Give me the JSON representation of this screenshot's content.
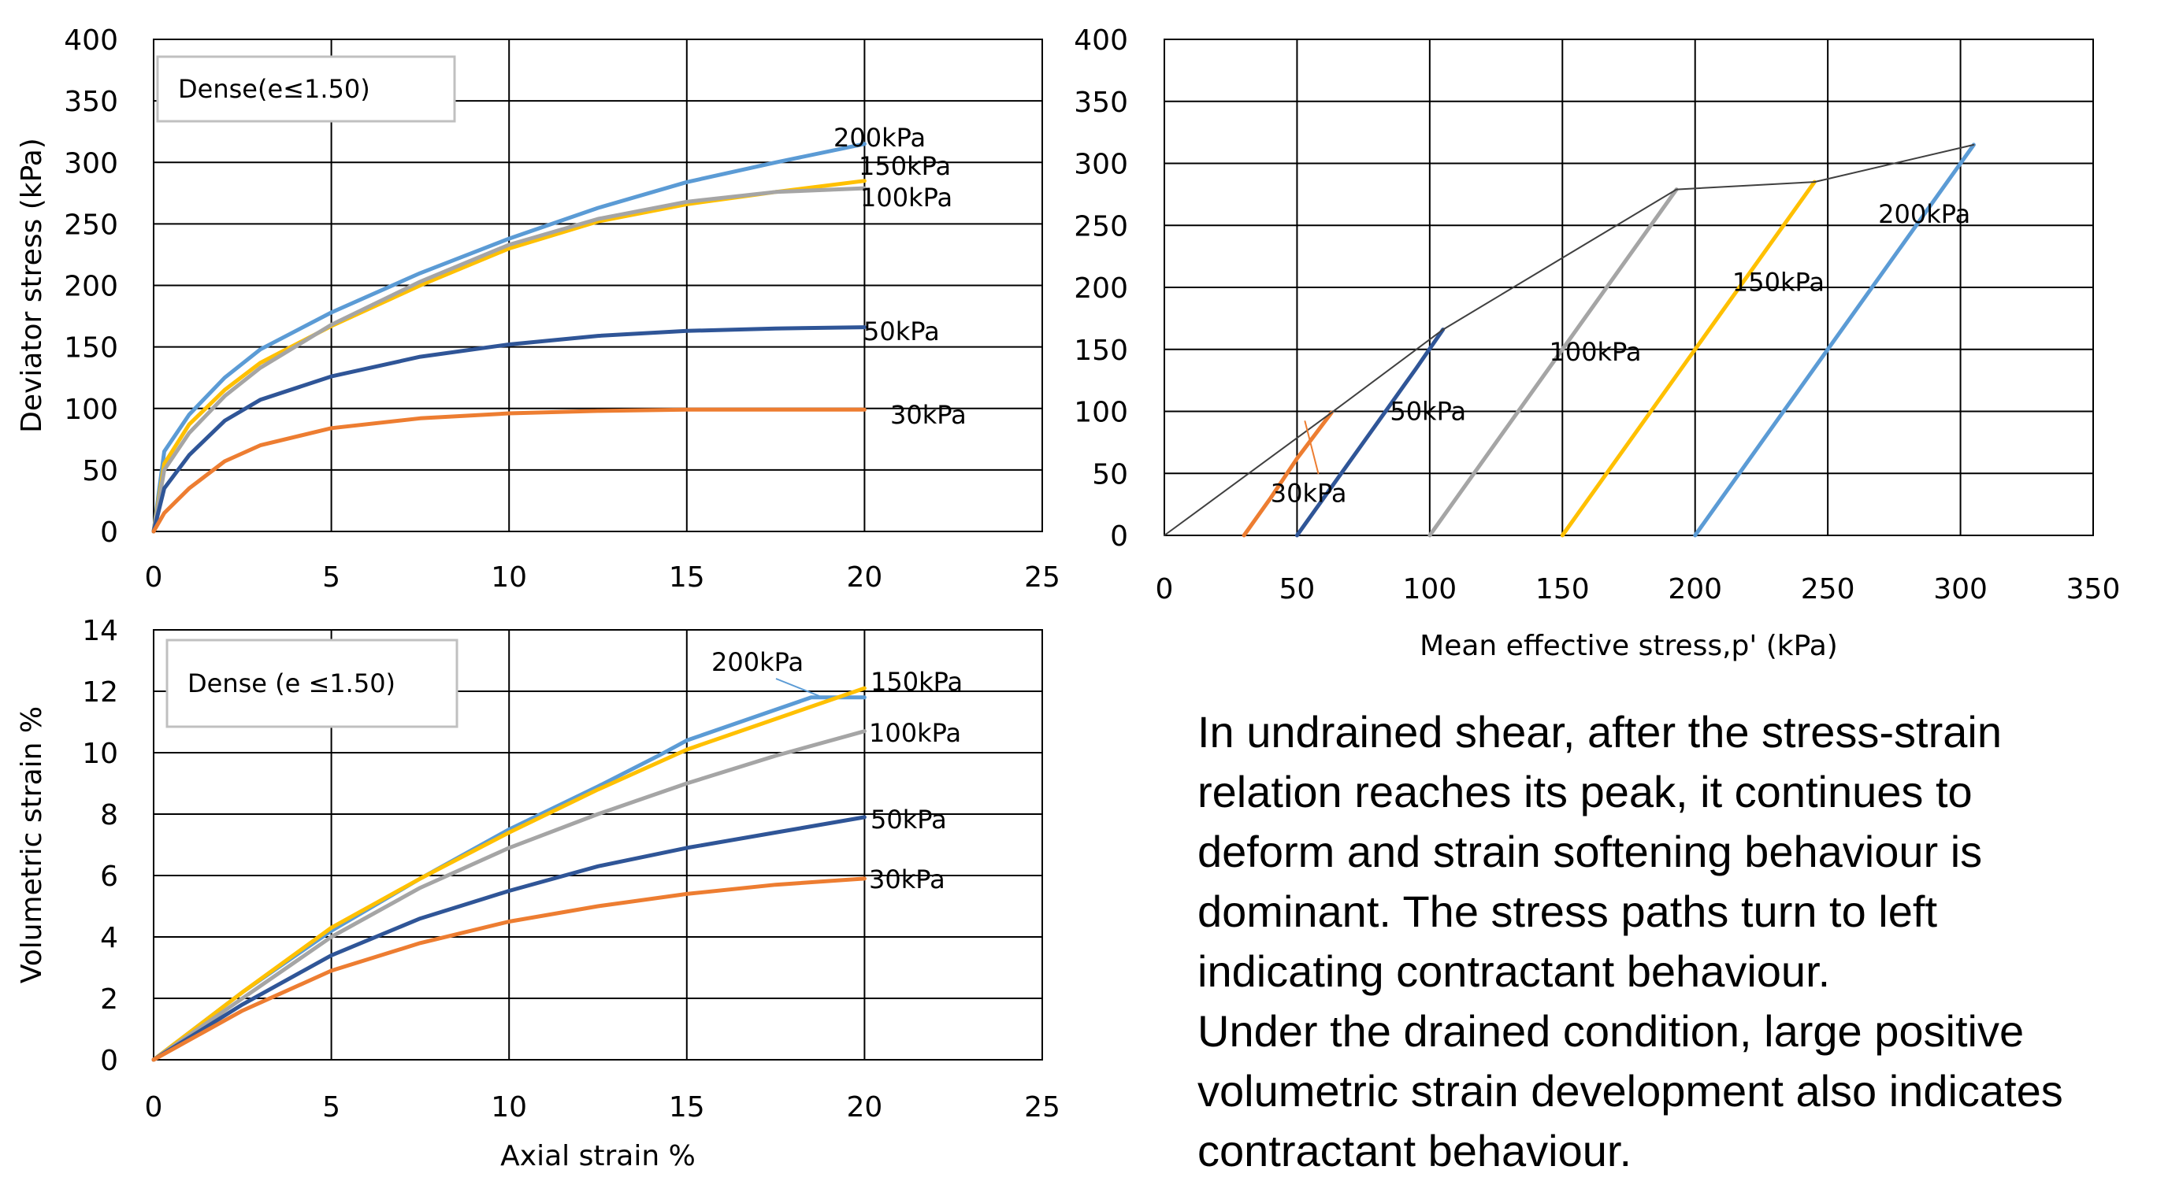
{
  "chart_data": [
    {
      "id": "deviator",
      "type": "line",
      "legend_box": "Dense(e≤1.50)",
      "xlabel": "",
      "ylabel": "Deviator stress (kPa)",
      "xlim": [
        0,
        25
      ],
      "ylim": [
        0,
        400
      ],
      "xticks": [
        0,
        5,
        10,
        15,
        20,
        25
      ],
      "yticks": [
        0,
        50,
        100,
        150,
        200,
        250,
        300,
        350,
        400
      ],
      "grid": true,
      "series": [
        {
          "name": "200kPa",
          "color": "#5b9bd5",
          "x": [
            0,
            0.3,
            1,
            2,
            3,
            5,
            7.5,
            10,
            12.5,
            15,
            17.5,
            20
          ],
          "y": [
            0,
            65,
            95,
            125,
            148,
            178,
            210,
            238,
            263,
            284,
            300,
            315
          ]
        },
        {
          "name": "150kPa",
          "color": "#ffc000",
          "x": [
            0,
            0.3,
            1,
            2,
            3,
            5,
            7.5,
            10,
            12.5,
            15,
            17.5,
            20
          ],
          "y": [
            0,
            55,
            87,
            115,
            137,
            167,
            200,
            230,
            252,
            266,
            276,
            285
          ]
        },
        {
          "name": "100kPa",
          "color": "#a5a5a5",
          "x": [
            0,
            0.3,
            1,
            2,
            3,
            5,
            7.5,
            10,
            12.5,
            15,
            17.5,
            20
          ],
          "y": [
            0,
            50,
            80,
            110,
            133,
            168,
            203,
            233,
            254,
            268,
            276,
            279
          ]
        },
        {
          "name": "50kPa",
          "color": "#2f5597",
          "x": [
            0,
            0.3,
            1,
            2,
            3,
            5,
            7.5,
            10,
            12.5,
            15,
            17.5,
            20
          ],
          "y": [
            0,
            35,
            62,
            90,
            107,
            126,
            142,
            152,
            159,
            163,
            165,
            166
          ]
        },
        {
          "name": "30kPa",
          "color": "#ed7d31",
          "x": [
            0,
            0.3,
            1,
            2,
            3,
            5,
            7.5,
            10,
            12.5,
            15,
            17.5,
            20
          ],
          "y": [
            0,
            15,
            35,
            57,
            70,
            84,
            92,
            96,
            98,
            99,
            99,
            99
          ]
        }
      ]
    },
    {
      "id": "stresspath",
      "type": "line",
      "xlabel": "Mean effective stress,p' (kPa)",
      "ylabel": "",
      "xlim": [
        0,
        350
      ],
      "ylim": [
        0,
        400
      ],
      "xticks": [
        0,
        50,
        100,
        150,
        200,
        250,
        300,
        350
      ],
      "yticks": [
        0,
        50,
        100,
        150,
        200,
        250,
        300,
        350,
        400
      ],
      "grid": true,
      "series": [
        {
          "name": "30kPa",
          "color": "#ed7d31",
          "x": [
            30,
            40,
            50,
            63
          ],
          "y": [
            0,
            30,
            62,
            99
          ]
        },
        {
          "name": "50kPa",
          "color": "#2f5597",
          "x": [
            50,
            65,
            80,
            95,
            105
          ],
          "y": [
            0,
            45,
            90,
            135,
            166
          ]
        },
        {
          "name": "100kPa",
          "color": "#a5a5a5",
          "x": [
            100,
            130,
            160,
            193
          ],
          "y": [
            0,
            90,
            180,
            279
          ]
        },
        {
          "name": "150kPa",
          "color": "#ffc000",
          "x": [
            150,
            180,
            210,
            245
          ],
          "y": [
            0,
            90,
            180,
            285
          ]
        },
        {
          "name": "200kPa",
          "color": "#5b9bd5",
          "x": [
            200,
            235,
            270,
            305
          ],
          "y": [
            0,
            105,
            210,
            315
          ]
        },
        {
          "name": "",
          "color": "#404040",
          "thin": true,
          "x": [
            0,
            63,
            105,
            193,
            245,
            305
          ],
          "y": [
            0,
            99,
            166,
            279,
            285,
            315
          ]
        },
        {
          "name": "",
          "color": "#ed7d31",
          "thin": true,
          "x": [
            53,
            58
          ],
          "y": [
            92,
            50
          ]
        }
      ],
      "labels": [
        {
          "text": "200kPa",
          "x": 269,
          "y": 252
        },
        {
          "text": "150kPa",
          "x": 214,
          "y": 197
        },
        {
          "text": "100kPa",
          "x": 145,
          "y": 141
        },
        {
          "text": "50kPa",
          "x": 85,
          "y": 93
        },
        {
          "text": "30kPa",
          "x": 40,
          "y": 27
        }
      ]
    },
    {
      "id": "volumetric",
      "type": "line",
      "legend_box": "Dense (e ≤1.50)",
      "xlabel": "Axial strain %",
      "ylabel": "Volumetric strain %",
      "xlim": [
        0,
        25
      ],
      "ylim": [
        0,
        14
      ],
      "xticks": [
        0,
        5,
        10,
        15,
        20,
        25
      ],
      "yticks": [
        0,
        2,
        4,
        6,
        8,
        10,
        12,
        14
      ],
      "grid": true,
      "series": [
        {
          "name": "200kPa",
          "color": "#5b9bd5",
          "x": [
            0,
            2.5,
            5,
            7.5,
            10,
            12.5,
            14.2,
            15,
            17.5,
            18.5,
            20
          ],
          "y": [
            0,
            2.2,
            4.2,
            5.9,
            7.5,
            8.9,
            9.9,
            10.4,
            11.4,
            11.8,
            11.8
          ]
        },
        {
          "name": "150kPa",
          "color": "#ffc000",
          "x": [
            0,
            2.5,
            5,
            7.5,
            10,
            12.5,
            15,
            17.5,
            20
          ],
          "y": [
            0,
            2.2,
            4.3,
            5.9,
            7.4,
            8.8,
            10.1,
            11.1,
            12.1
          ]
        },
        {
          "name": "100kPa",
          "color": "#a5a5a5",
          "x": [
            0,
            2.5,
            5,
            7.5,
            10,
            12.5,
            15,
            17.5,
            20
          ],
          "y": [
            0,
            2.0,
            4.0,
            5.6,
            6.9,
            8.0,
            9.0,
            9.9,
            10.7
          ]
        },
        {
          "name": "50kPa",
          "color": "#2f5597",
          "x": [
            0,
            2.5,
            5,
            7.5,
            10,
            12.5,
            15,
            17.5,
            20
          ],
          "y": [
            0,
            1.8,
            3.4,
            4.6,
            5.5,
            6.3,
            6.9,
            7.4,
            7.9
          ]
        },
        {
          "name": "30kPa",
          "color": "#ed7d31",
          "x": [
            0,
            2.5,
            5,
            7.5,
            10,
            12.5,
            15,
            17.5,
            20
          ],
          "y": [
            0,
            1.6,
            2.9,
            3.8,
            4.5,
            5.0,
            5.4,
            5.7,
            5.9
          ]
        }
      ]
    }
  ],
  "annotation_200kPa_vol": "200kPa",
  "note": "In undrained shear, after the stress-strain\nrelation reaches its peak, it continues to\ndeform and strain softening behaviour is\ndominant. The stress paths turn to left\nindicating contractant behaviour.\nUnder the drained condition, large positive\nvolumetric strain development also indicates\ncontractant behaviour."
}
